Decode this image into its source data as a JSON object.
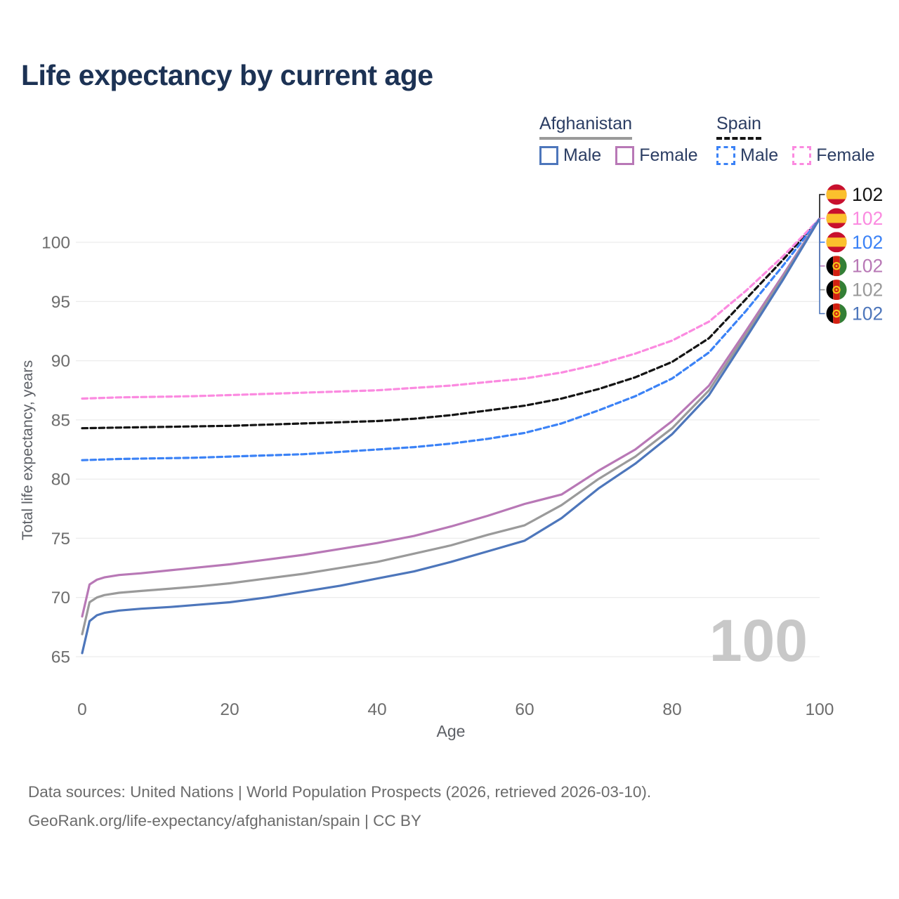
{
  "title": "Life expectancy by current age",
  "legend": {
    "groups": [
      {
        "name": "Afghanistan",
        "underline_style": "solid",
        "underline_color": "#9a9a9a",
        "items": [
          {
            "label": "Male",
            "color": "#4d76bb",
            "dashed": false
          },
          {
            "label": "Female",
            "color": "#b878b6",
            "dashed": false
          }
        ]
      },
      {
        "name": "Spain",
        "underline_style": "dashed",
        "underline_color": "#141414",
        "items": [
          {
            "label": "Male",
            "color": "#3b82f6",
            "dashed": true
          },
          {
            "label": "Female",
            "color": "#fb8ae0",
            "dashed": true
          }
        ]
      }
    ]
  },
  "chart_data": {
    "type": "line",
    "xlabel": "Age",
    "ylabel": "Total life expectancy, years",
    "xlim": [
      0,
      100
    ],
    "ylim": [
      63.5,
      103
    ],
    "xticks": [
      0,
      20,
      40,
      60,
      80,
      100
    ],
    "yticks": [
      65,
      70,
      75,
      80,
      85,
      90,
      95,
      100
    ],
    "grid": "horizontal",
    "current_age_watermark": "100",
    "colors": {
      "grid": "#ececec",
      "tick_label": "#6d6d6d",
      "axis_title": "#5d6066",
      "watermark": "#c8c8c8"
    },
    "series": [
      {
        "id": "spain-all",
        "country": "Spain",
        "legend_label": null,
        "flag": "spain",
        "color": "#141414",
        "dashed": true,
        "row": 0,
        "end_label": "102",
        "points": [
          [
            0,
            84.3
          ],
          [
            5,
            84.35
          ],
          [
            10,
            84.4
          ],
          [
            15,
            84.45
          ],
          [
            20,
            84.5
          ],
          [
            25,
            84.6
          ],
          [
            30,
            84.7
          ],
          [
            35,
            84.8
          ],
          [
            40,
            84.9
          ],
          [
            45,
            85.1
          ],
          [
            50,
            85.4
          ],
          [
            55,
            85.8
          ],
          [
            60,
            86.2
          ],
          [
            65,
            86.8
          ],
          [
            70,
            87.6
          ],
          [
            75,
            88.6
          ],
          [
            80,
            89.9
          ],
          [
            85,
            91.9
          ],
          [
            90,
            95.2
          ],
          [
            95,
            98.5
          ],
          [
            100,
            102
          ]
        ]
      },
      {
        "id": "spain-female",
        "country": "Spain",
        "legend_label": "Female",
        "flag": "spain",
        "color": "#fb8ae0",
        "dashed": true,
        "row": 1,
        "end_label": "102",
        "points": [
          [
            0,
            86.8
          ],
          [
            5,
            86.9
          ],
          [
            10,
            86.95
          ],
          [
            15,
            87.0
          ],
          [
            20,
            87.1
          ],
          [
            25,
            87.2
          ],
          [
            30,
            87.3
          ],
          [
            35,
            87.4
          ],
          [
            40,
            87.5
          ],
          [
            45,
            87.7
          ],
          [
            50,
            87.9
          ],
          [
            55,
            88.2
          ],
          [
            60,
            88.5
          ],
          [
            65,
            89.0
          ],
          [
            70,
            89.7
          ],
          [
            75,
            90.6
          ],
          [
            80,
            91.7
          ],
          [
            85,
            93.3
          ],
          [
            90,
            95.9
          ],
          [
            95,
            98.8
          ],
          [
            100,
            102
          ]
        ]
      },
      {
        "id": "spain-male",
        "country": "Spain",
        "legend_label": "Male",
        "flag": "spain",
        "color": "#3b82f6",
        "dashed": true,
        "row": 2,
        "end_label": "102",
        "points": [
          [
            0,
            81.6
          ],
          [
            5,
            81.7
          ],
          [
            10,
            81.75
          ],
          [
            15,
            81.8
          ],
          [
            20,
            81.9
          ],
          [
            25,
            82.0
          ],
          [
            30,
            82.1
          ],
          [
            35,
            82.3
          ],
          [
            40,
            82.5
          ],
          [
            45,
            82.7
          ],
          [
            50,
            83.0
          ],
          [
            55,
            83.4
          ],
          [
            60,
            83.9
          ],
          [
            65,
            84.7
          ],
          [
            70,
            85.8
          ],
          [
            75,
            87.0
          ],
          [
            80,
            88.5
          ],
          [
            85,
            90.7
          ],
          [
            90,
            94.2
          ],
          [
            95,
            98.0
          ],
          [
            100,
            102
          ]
        ]
      },
      {
        "id": "afghanistan-female",
        "country": "Afghanistan",
        "legend_label": "Female",
        "flag": "afghanistan",
        "color": "#b878b6",
        "dashed": false,
        "row": 3,
        "end_label": "102",
        "points": [
          [
            0,
            68.4
          ],
          [
            1,
            71.1
          ],
          [
            2,
            71.5
          ],
          [
            3,
            71.7
          ],
          [
            5,
            71.9
          ],
          [
            8,
            72.05
          ],
          [
            12,
            72.3
          ],
          [
            16,
            72.55
          ],
          [
            20,
            72.8
          ],
          [
            25,
            73.2
          ],
          [
            30,
            73.6
          ],
          [
            35,
            74.1
          ],
          [
            40,
            74.6
          ],
          [
            45,
            75.2
          ],
          [
            50,
            76.0
          ],
          [
            55,
            76.9
          ],
          [
            60,
            77.9
          ],
          [
            65,
            78.7
          ],
          [
            70,
            80.7
          ],
          [
            75,
            82.5
          ],
          [
            80,
            84.9
          ],
          [
            85,
            87.9
          ],
          [
            90,
            92.5
          ],
          [
            95,
            97.2
          ],
          [
            100,
            102
          ]
        ]
      },
      {
        "id": "afghanistan-all",
        "country": "Afghanistan",
        "legend_label": null,
        "flag": "afghanistan",
        "color": "#9a9a9a",
        "dashed": false,
        "row": 4,
        "end_label": "102",
        "points": [
          [
            0,
            66.9
          ],
          [
            1,
            69.6
          ],
          [
            2,
            70.0
          ],
          [
            3,
            70.2
          ],
          [
            5,
            70.4
          ],
          [
            8,
            70.55
          ],
          [
            12,
            70.75
          ],
          [
            16,
            70.95
          ],
          [
            20,
            71.2
          ],
          [
            25,
            71.6
          ],
          [
            30,
            72.0
          ],
          [
            35,
            72.5
          ],
          [
            40,
            73.0
          ],
          [
            45,
            73.7
          ],
          [
            50,
            74.4
          ],
          [
            55,
            75.3
          ],
          [
            60,
            76.1
          ],
          [
            65,
            77.8
          ],
          [
            70,
            80.0
          ],
          [
            75,
            81.9
          ],
          [
            80,
            84.3
          ],
          [
            85,
            87.5
          ],
          [
            90,
            92.2
          ],
          [
            95,
            97.0
          ],
          [
            100,
            102
          ]
        ]
      },
      {
        "id": "afghanistan-male",
        "country": "Afghanistan",
        "legend_label": "Male",
        "flag": "afghanistan",
        "color": "#4d76bb",
        "dashed": false,
        "row": 5,
        "end_label": "102",
        "points": [
          [
            0,
            65.3
          ],
          [
            1,
            68.0
          ],
          [
            2,
            68.5
          ],
          [
            3,
            68.7
          ],
          [
            5,
            68.9
          ],
          [
            8,
            69.05
          ],
          [
            12,
            69.2
          ],
          [
            16,
            69.4
          ],
          [
            20,
            69.6
          ],
          [
            25,
            70.0
          ],
          [
            30,
            70.5
          ],
          [
            35,
            71.0
          ],
          [
            40,
            71.6
          ],
          [
            45,
            72.2
          ],
          [
            50,
            73.0
          ],
          [
            55,
            73.9
          ],
          [
            60,
            74.8
          ],
          [
            65,
            76.7
          ],
          [
            70,
            79.2
          ],
          [
            75,
            81.3
          ],
          [
            80,
            83.8
          ],
          [
            85,
            87.1
          ],
          [
            90,
            91.9
          ],
          [
            95,
            96.8
          ],
          [
            100,
            102
          ]
        ]
      }
    ],
    "flag_colors": {
      "spain_red": "#c8102e",
      "spain_yellow": "#fbc02d",
      "afghanistan_black": "#000000",
      "afghanistan_red": "#d32011",
      "afghanistan_green": "#337f36",
      "afghanistan_emblem": "#f5c518"
    }
  },
  "footer": {
    "line1": "Data sources: United Nations | World Population Prospects (2026, retrieved 2026-03-10).",
    "line2": "GeoRank.org/life-expectancy/afghanistan/spain | CC BY"
  }
}
